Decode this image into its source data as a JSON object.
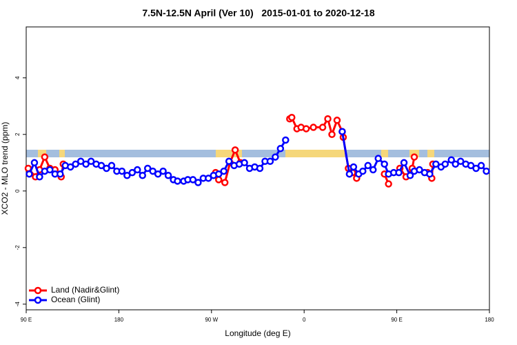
{
  "chart_data": {
    "type": "line",
    "title": "7.5N-12.5N April (Ver 10)   2015-01-01 to 2020-12-18",
    "x_label": "Longitude (deg E)",
    "y_label": "XCO2 - MLO trend (ppm)",
    "xlim": [
      90,
      540
    ],
    "xticks": [
      {
        "value": 90,
        "label": "90 E"
      },
      {
        "value": 180,
        "label": "180"
      },
      {
        "value": 270,
        "label": "90 W"
      },
      {
        "value": 360,
        "label": "0"
      },
      {
        "value": 450,
        "label": "90 E"
      },
      {
        "value": 540,
        "label": "180"
      }
    ],
    "ylim": [
      -4.2,
      5.8
    ],
    "yticks": [
      -4,
      -2,
      0,
      2,
      4
    ],
    "legend": "bottom-left",
    "series": [
      {
        "name": "Land (Nadir&Glint)",
        "color": "#ff0000",
        "x": [
          92,
          99,
          103,
          108,
          113,
          118,
          124,
          126,
          127,
          274,
          277,
          283,
          288,
          293,
          298,
          299,
          346,
          348,
          353,
          357,
          362,
          369,
          378,
          383,
          387,
          392,
          397,
          398,
          403,
          407,
          411,
          412,
          438,
          442,
          443,
          453,
          459,
          465,
          467,
          468,
          480,
          484,
          485
        ],
        "values": [
          0.8,
          0.5,
          0.75,
          1.2,
          0.8,
          0.75,
          0.5,
          0.95,
          null,
          0.65,
          0.4,
          0.3,
          1.0,
          1.45,
          1.0,
          null,
          2.55,
          2.6,
          2.2,
          2.25,
          2.2,
          2.25,
          2.25,
          2.55,
          2.0,
          2.5,
          2.1,
          1.9,
          0.8,
          0.65,
          0.45,
          null,
          0.6,
          0.25,
          null,
          0.8,
          0.5,
          0.8,
          1.2,
          null,
          0.65,
          0.45,
          0.95
        ]
      },
      {
        "name": "Ocean (Glint)",
        "color": "#0000ff",
        "x": [
          93,
          98,
          103,
          108,
          113,
          118,
          123,
          128,
          133,
          138,
          143,
          148,
          153,
          158,
          163,
          168,
          173,
          178,
          183,
          188,
          193,
          198,
          203,
          208,
          213,
          218,
          223,
          228,
          233,
          237,
          243,
          247,
          252,
          257,
          262,
          267,
          272,
          277,
          282,
          287,
          292,
          297,
          302,
          307,
          312,
          317,
          322,
          327,
          332,
          337,
          342,
          370,
          397,
          404,
          408,
          413,
          417,
          422,
          427,
          432,
          438,
          442,
          447,
          452,
          457,
          463,
          467,
          472,
          477,
          482,
          488,
          493,
          497,
          503,
          507,
          512,
          517,
          522,
          527,
          532,
          537
        ],
        "values": [
          0.6,
          1.0,
          0.5,
          0.7,
          0.75,
          0.6,
          0.6,
          0.9,
          0.85,
          0.95,
          1.05,
          0.95,
          1.05,
          0.95,
          0.9,
          0.8,
          0.9,
          0.7,
          0.7,
          0.55,
          0.65,
          0.75,
          0.55,
          0.8,
          0.7,
          0.6,
          0.7,
          0.55,
          0.4,
          0.35,
          0.35,
          0.4,
          0.4,
          0.3,
          0.45,
          0.45,
          0.55,
          0.6,
          0.7,
          1.05,
          0.9,
          0.95,
          1.0,
          0.8,
          0.85,
          0.8,
          1.05,
          1.05,
          1.2,
          1.5,
          1.8,
          null,
          2.1,
          0.6,
          0.85,
          0.6,
          0.7,
          0.9,
          0.75,
          1.15,
          0.95,
          0.6,
          0.65,
          0.65,
          1.0,
          0.55,
          0.7,
          0.75,
          0.65,
          0.6,
          0.95,
          0.85,
          0.95,
          1.1,
          0.95,
          1.05,
          0.95,
          0.9,
          0.8,
          0.9,
          0.7
        ]
      }
    ]
  }
}
